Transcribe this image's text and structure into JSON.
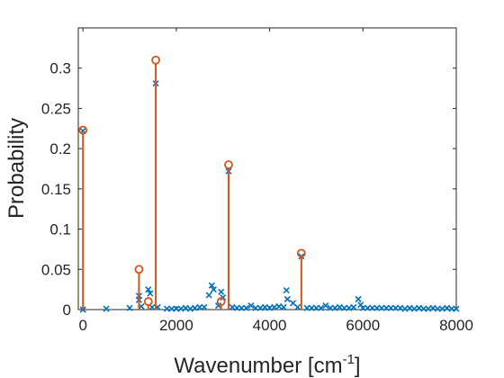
{
  "chart_data": {
    "type": "scatter",
    "xlabel_main": "Wavenumber [cm",
    "xlabel_sup": "-1",
    "xlabel_end": "]",
    "ylabel": "Probability",
    "xlim": [
      -100,
      8000
    ],
    "ylim": [
      0,
      0.35
    ],
    "xticks": [
      0,
      2000,
      4000,
      6000,
      8000
    ],
    "xtick_labels": [
      "0",
      "2000",
      "4000",
      "6000",
      "8000"
    ],
    "yticks": [
      0,
      0.05,
      0.1,
      0.15,
      0.2,
      0.25,
      0.3
    ],
    "ytick_labels": [
      "0",
      "0.05",
      "0.1",
      "0.15",
      "0.2",
      "0.25",
      "0.3"
    ],
    "grid": false,
    "legend": "none",
    "colors": {
      "stem": "#D95319",
      "cross": "#0072BD",
      "axis": "#262626"
    },
    "series": [
      {
        "marker": "circle-stem",
        "points": [
          {
            "x": 0,
            "y": 0.223
          },
          {
            "x": 1200,
            "y": 0.05
          },
          {
            "x": 1400,
            "y": 0.01
          },
          {
            "x": 1560,
            "y": 0.31
          },
          {
            "x": 2960,
            "y": 0.01
          },
          {
            "x": 3120,
            "y": 0.18
          },
          {
            "x": 4680,
            "y": 0.07
          }
        ]
      },
      {
        "marker": "cross",
        "points": [
          {
            "x": 0,
            "y": 0.222
          },
          {
            "x": 0,
            "y": 0.0
          },
          {
            "x": 500,
            "y": 0.001
          },
          {
            "x": 1000,
            "y": 0.002
          },
          {
            "x": 1200,
            "y": 0.017
          },
          {
            "x": 1200,
            "y": 0.012
          },
          {
            "x": 1250,
            "y": 0.004
          },
          {
            "x": 1400,
            "y": 0.025
          },
          {
            "x": 1440,
            "y": 0.02
          },
          {
            "x": 1480,
            "y": 0.003
          },
          {
            "x": 1560,
            "y": 0.281
          },
          {
            "x": 1600,
            "y": 0.003
          },
          {
            "x": 1800,
            "y": 0.001
          },
          {
            "x": 1900,
            "y": 0.001
          },
          {
            "x": 2000,
            "y": 0.001
          },
          {
            "x": 2100,
            "y": 0.001
          },
          {
            "x": 2200,
            "y": 0.002
          },
          {
            "x": 2300,
            "y": 0.001
          },
          {
            "x": 2400,
            "y": 0.002
          },
          {
            "x": 2500,
            "y": 0.003
          },
          {
            "x": 2600,
            "y": 0.003
          },
          {
            "x": 2700,
            "y": 0.018
          },
          {
            "x": 2760,
            "y": 0.03
          },
          {
            "x": 2800,
            "y": 0.025
          },
          {
            "x": 2900,
            "y": 0.005
          },
          {
            "x": 2960,
            "y": 0.022
          },
          {
            "x": 3000,
            "y": 0.015
          },
          {
            "x": 3120,
            "y": 0.172
          },
          {
            "x": 3200,
            "y": 0.003
          },
          {
            "x": 3300,
            "y": 0.002
          },
          {
            "x": 3400,
            "y": 0.002
          },
          {
            "x": 3500,
            "y": 0.002
          },
          {
            "x": 3600,
            "y": 0.005
          },
          {
            "x": 3700,
            "y": 0.002
          },
          {
            "x": 3800,
            "y": 0.002
          },
          {
            "x": 3900,
            "y": 0.003
          },
          {
            "x": 4000,
            "y": 0.002
          },
          {
            "x": 4100,
            "y": 0.003
          },
          {
            "x": 4200,
            "y": 0.004
          },
          {
            "x": 4300,
            "y": 0.003
          },
          {
            "x": 4360,
            "y": 0.024
          },
          {
            "x": 4380,
            "y": 0.013
          },
          {
            "x": 4500,
            "y": 0.008
          },
          {
            "x": 4600,
            "y": 0.003
          },
          {
            "x": 4680,
            "y": 0.066
          },
          {
            "x": 4800,
            "y": 0.002
          },
          {
            "x": 4900,
            "y": 0.002
          },
          {
            "x": 5000,
            "y": 0.002
          },
          {
            "x": 5100,
            "y": 0.002
          },
          {
            "x": 5200,
            "y": 0.005
          },
          {
            "x": 5300,
            "y": 0.002
          },
          {
            "x": 5400,
            "y": 0.002
          },
          {
            "x": 5500,
            "y": 0.003
          },
          {
            "x": 5600,
            "y": 0.002
          },
          {
            "x": 5700,
            "y": 0.002
          },
          {
            "x": 5800,
            "y": 0.003
          },
          {
            "x": 5900,
            "y": 0.013
          },
          {
            "x": 5950,
            "y": 0.006
          },
          {
            "x": 6000,
            "y": 0.002
          },
          {
            "x": 6100,
            "y": 0.002
          },
          {
            "x": 6200,
            "y": 0.002
          },
          {
            "x": 6300,
            "y": 0.002
          },
          {
            "x": 6400,
            "y": 0.002
          },
          {
            "x": 6500,
            "y": 0.002
          },
          {
            "x": 6600,
            "y": 0.002
          },
          {
            "x": 6700,
            "y": 0.002
          },
          {
            "x": 6800,
            "y": 0.002
          },
          {
            "x": 6900,
            "y": 0.001
          },
          {
            "x": 7000,
            "y": 0.002
          },
          {
            "x": 7100,
            "y": 0.001
          },
          {
            "x": 7200,
            "y": 0.002
          },
          {
            "x": 7300,
            "y": 0.001
          },
          {
            "x": 7400,
            "y": 0.001
          },
          {
            "x": 7500,
            "y": 0.002
          },
          {
            "x": 7600,
            "y": 0.001
          },
          {
            "x": 7700,
            "y": 0.001
          },
          {
            "x": 7800,
            "y": 0.002
          },
          {
            "x": 7900,
            "y": 0.001
          },
          {
            "x": 8000,
            "y": 0.001
          }
        ]
      }
    ]
  }
}
